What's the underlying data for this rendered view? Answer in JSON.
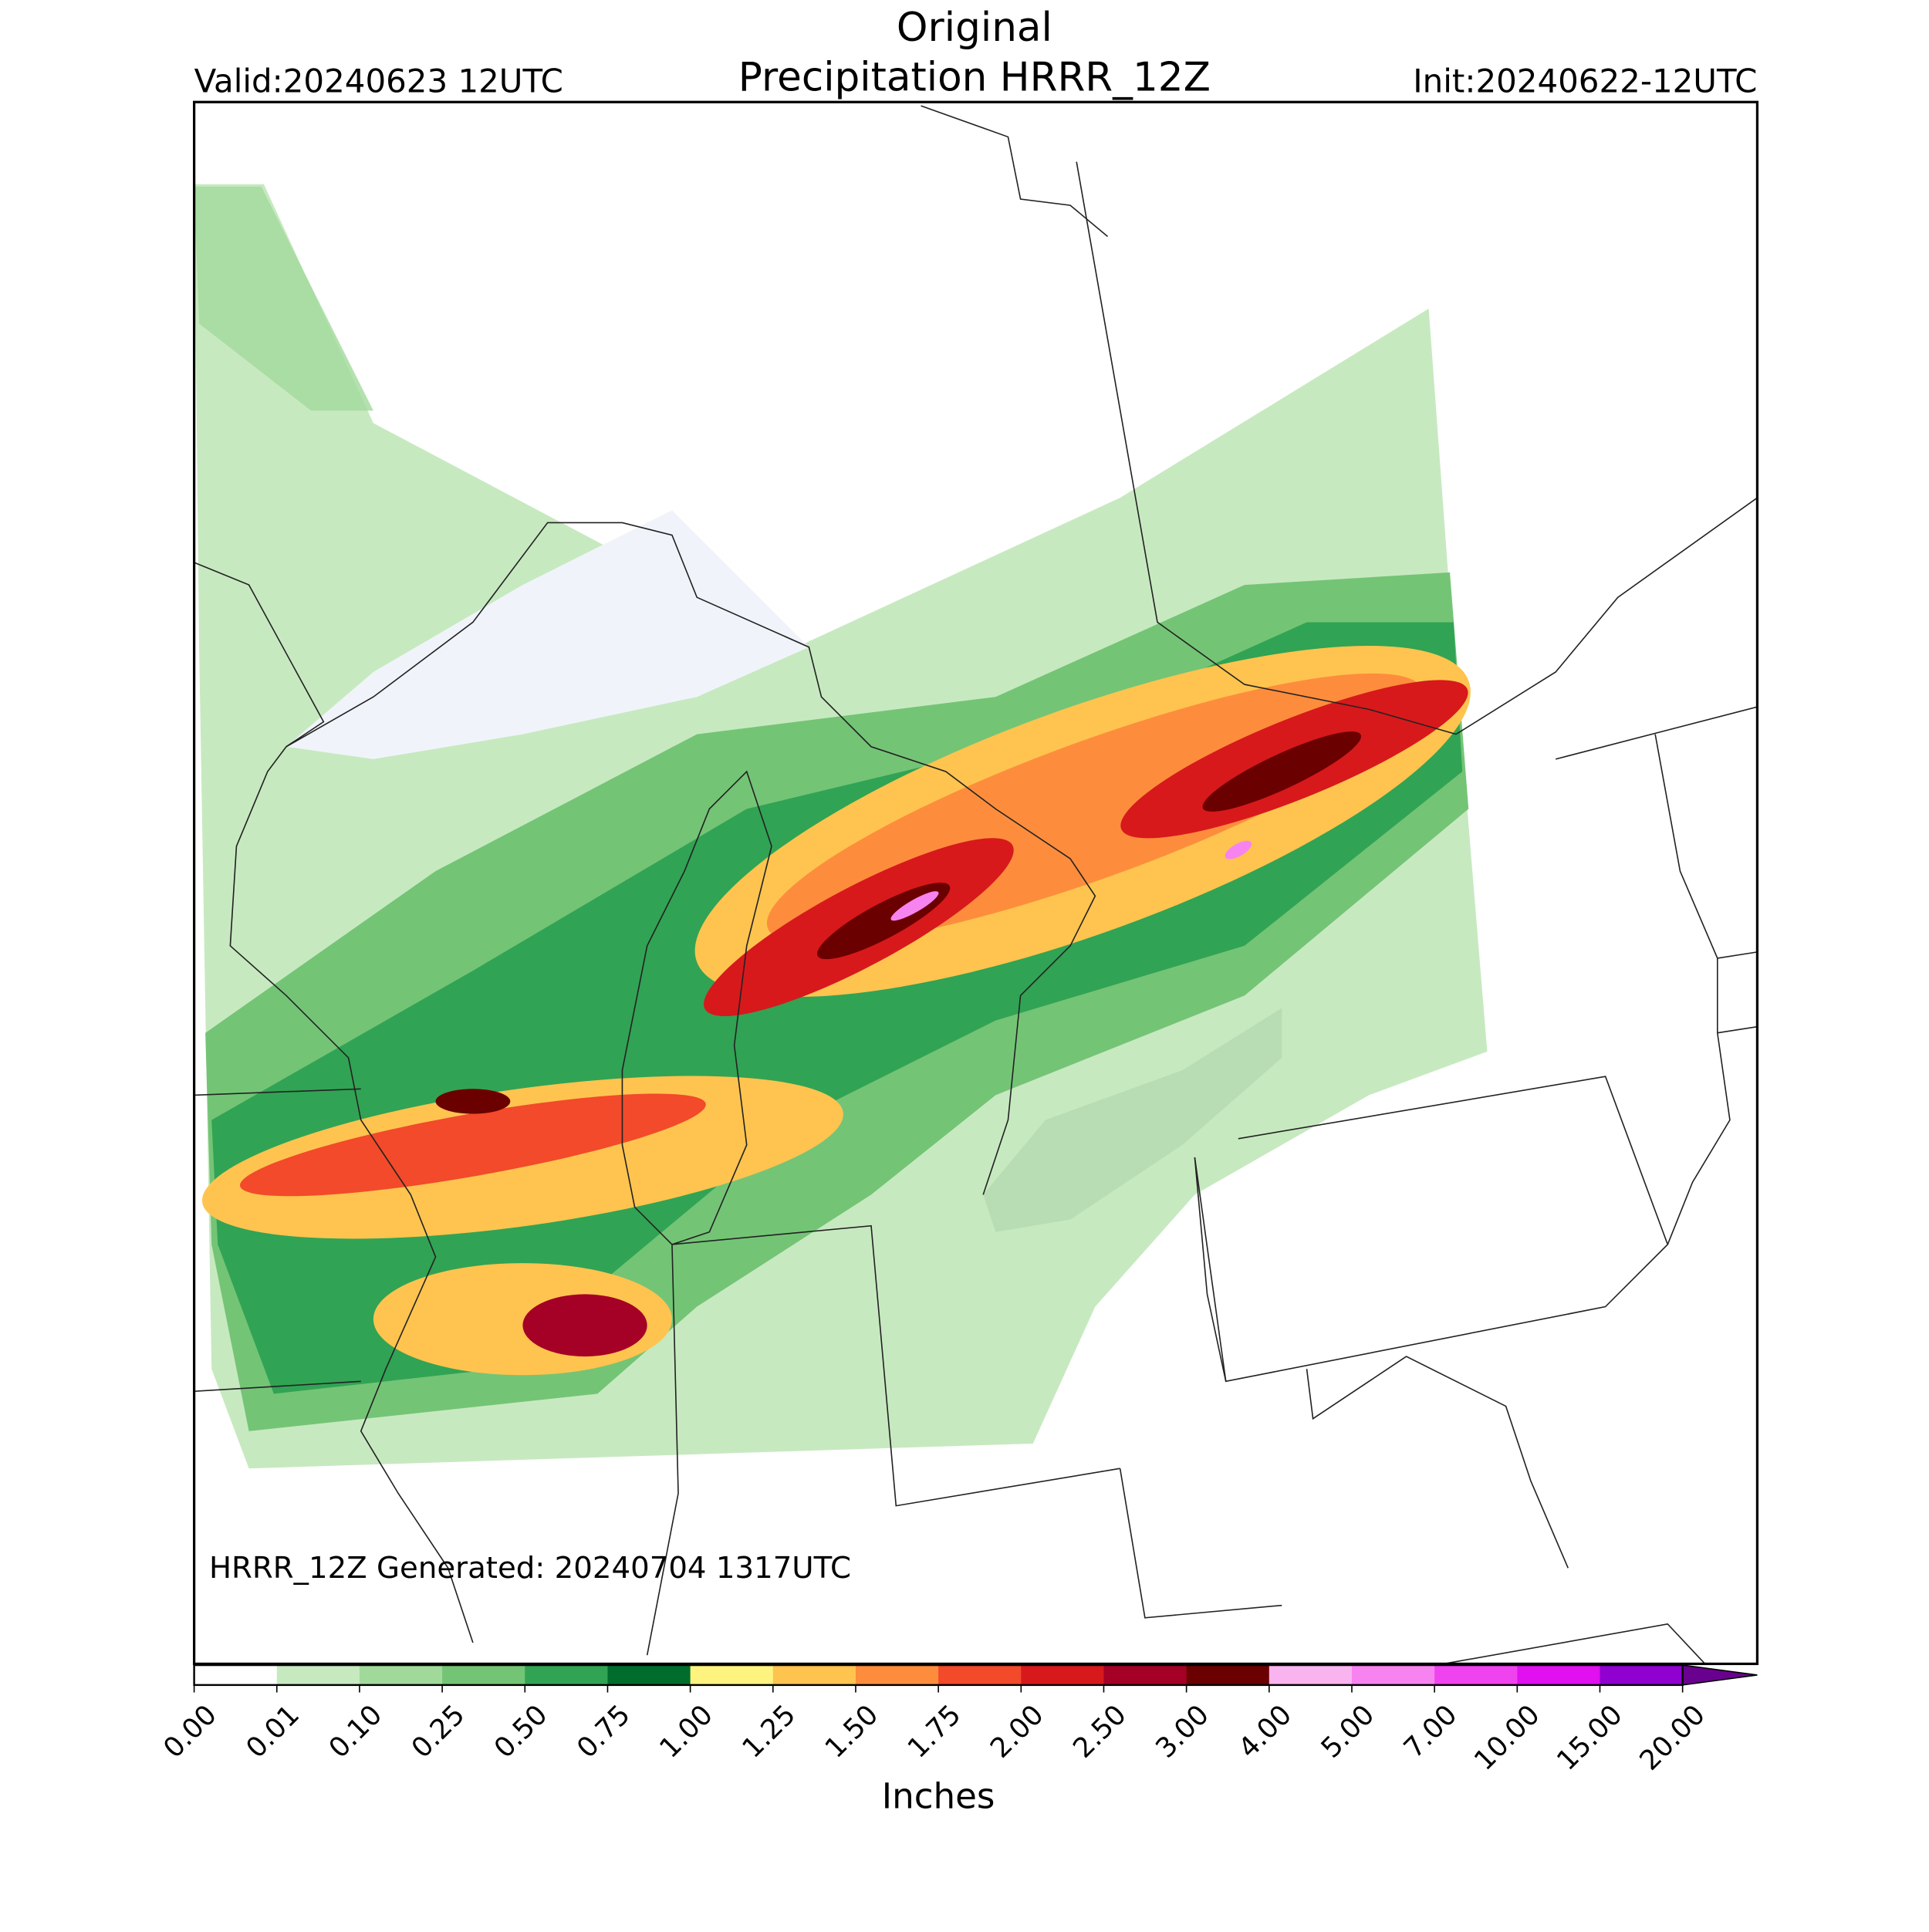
{
  "map": {
    "title": "Original",
    "subtitle": "Precipitation HRRR_12Z",
    "valid": "Valid:20240623 12UTC",
    "init": "Init:20240622-12UTC",
    "generated": "HRRR_12Z Generated: 20240704 1317UTC",
    "colorbar": {
      "label": "Inches",
      "ticks": [
        {
          "value": 0,
          "label": "0.00"
        },
        {
          "value": 0.01,
          "label": "0.01"
        },
        {
          "value": 0.1,
          "label": "0.10"
        },
        {
          "value": 0.25,
          "label": "0.25"
        },
        {
          "value": 0.5,
          "label": "0.50"
        },
        {
          "value": 0.75,
          "label": "0.75"
        },
        {
          "value": 1,
          "label": "1.00"
        },
        {
          "value": 1.25,
          "label": "1.25"
        },
        {
          "value": 1.5,
          "label": "1.50"
        },
        {
          "value": 1.75,
          "label": "1.75"
        },
        {
          "value": 2,
          "label": "2.00"
        },
        {
          "value": 2.5,
          "label": "2.50"
        },
        {
          "value": 3,
          "label": "3.00"
        },
        {
          "value": 4,
          "label": "4.00"
        },
        {
          "value": 5,
          "label": "5.00"
        },
        {
          "value": 7,
          "label": "7.00"
        },
        {
          "value": 10,
          "label": "10.00"
        },
        {
          "value": 15,
          "label": "15.00"
        },
        {
          "value": 20,
          "label": "20.00"
        }
      ],
      "colors": [
        "#ffffff",
        "#c7e9c0",
        "#a1d99b",
        "#74c476",
        "#31a354",
        "#006d2c",
        "#fff380",
        "#fec44f",
        "#fd8d3c",
        "#f24a2a",
        "#d7191c",
        "#a50026",
        "#6b0000",
        "#f9b4f0",
        "#f783f0",
        "#f043f0",
        "#e010f0",
        "#9000d0"
      ],
      "extend_color": "#6a0090"
    }
  }
}
